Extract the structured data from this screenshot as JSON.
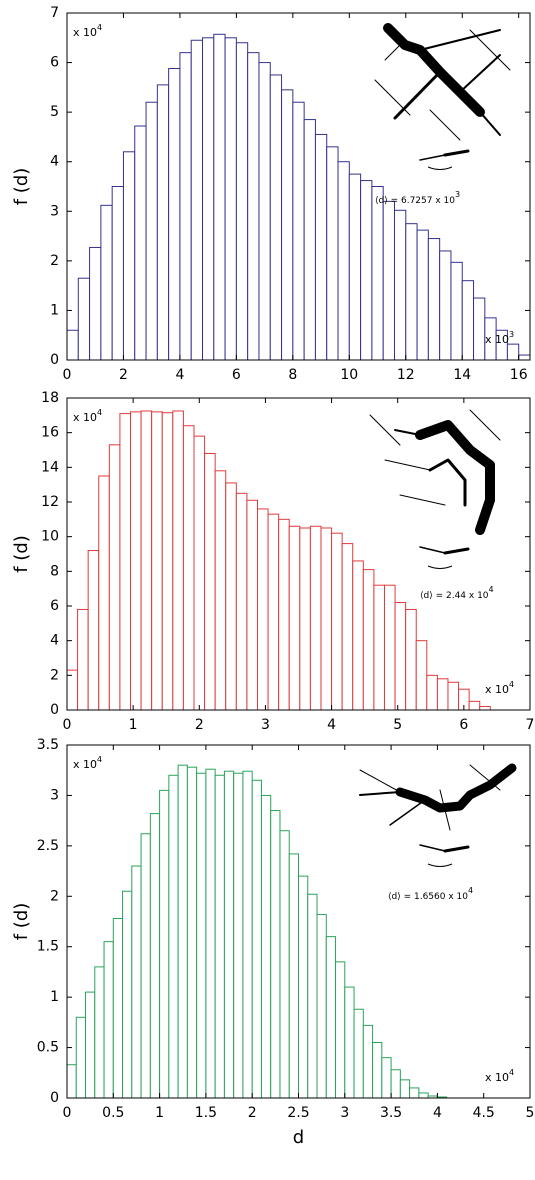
{
  "chart_data": [
    {
      "type": "histogram",
      "color": "#33338f",
      "ylabel": "f (d)",
      "y_multiplier": {
        "text": "x 10",
        "exponent": "4"
      },
      "x_multiplier": {
        "text": "x 10",
        "exponent": "3"
      },
      "mean_label": {
        "text": "⟨d⟩ = 6.7257 x 10",
        "exponent": "3"
      },
      "bins": [
        0,
        0.4,
        0.8,
        1.2,
        1.6,
        2,
        2.4,
        2.8,
        3.2,
        3.6,
        4,
        4.4,
        4.8,
        5.2,
        5.6,
        6,
        6.4,
        6.8,
        7.2,
        7.6,
        8,
        8.4,
        8.8,
        9.2,
        9.6,
        10,
        10.4,
        10.8,
        11.2,
        11.6,
        12,
        12.4,
        12.8,
        13.2,
        13.6,
        14,
        14.4,
        14.8,
        15.2,
        15.6,
        16,
        16.4
      ],
      "values": [
        0.6,
        1.65,
        2.27,
        3.12,
        3.5,
        4.2,
        4.72,
        5.2,
        5.55,
        5.88,
        6.2,
        6.45,
        6.5,
        6.57,
        6.5,
        6.4,
        6.2,
        6.0,
        5.75,
        5.45,
        5.2,
        4.85,
        4.55,
        4.3,
        4.0,
        3.75,
        3.62,
        3.5,
        3.2,
        3.02,
        2.75,
        2.62,
        2.45,
        2.2,
        1.97,
        1.6,
        1.25,
        0.85,
        0.6,
        0.32,
        0.1
      ],
      "xlim": [
        0,
        16.4
      ],
      "xticks": [
        0,
        2,
        4,
        6,
        8,
        10,
        12,
        14,
        16
      ],
      "ylim": [
        0,
        7
      ],
      "yticks": [
        0,
        1,
        2,
        3,
        4,
        5,
        6,
        7
      ]
    },
    {
      "type": "histogram",
      "color": "#e03a3a",
      "ylabel": "f (d)",
      "y_multiplier": {
        "text": "x 10",
        "exponent": "4"
      },
      "x_multiplier": {
        "text": "x 10",
        "exponent": "4"
      },
      "mean_label": {
        "text": "⟨d⟩ = 2.44 x 10",
        "exponent": "4"
      },
      "bins": [
        0,
        0.16,
        0.32,
        0.48,
        0.64,
        0.8,
        0.96,
        1.12,
        1.28,
        1.44,
        1.6,
        1.76,
        1.92,
        2.08,
        2.24,
        2.4,
        2.56,
        2.72,
        2.88,
        3.04,
        3.2,
        3.36,
        3.52,
        3.68,
        3.84,
        4,
        4.16,
        4.32,
        4.48,
        4.64,
        4.8,
        4.96,
        5.12,
        5.28,
        5.44,
        5.6,
        5.76,
        5.92,
        6.08,
        6.24,
        6.4
      ],
      "values": [
        2.3,
        5.8,
        9.2,
        13.5,
        15.3,
        17.1,
        17.2,
        17.25,
        17.2,
        17.15,
        17.25,
        16.4,
        15.8,
        14.8,
        13.8,
        13.1,
        12.5,
        12.1,
        11.6,
        11.3,
        11.0,
        10.6,
        10.5,
        10.6,
        10.5,
        10.2,
        9.6,
        8.6,
        8.1,
        7.2,
        7.2,
        6.2,
        5.8,
        4.0,
        2.0,
        1.8,
        1.6,
        1.2,
        0.5,
        0.2
      ],
      "xlim": [
        0,
        7
      ],
      "xticks": [
        0,
        1,
        2,
        3,
        4,
        5,
        6,
        7
      ],
      "ylim": [
        0,
        18
      ],
      "yticks": [
        0,
        2,
        4,
        6,
        8,
        10,
        12,
        14,
        16,
        18
      ]
    },
    {
      "type": "histogram",
      "color": "#2aa35a",
      "ylabel": "f (d)",
      "xlabel": "d",
      "y_multiplier": {
        "text": "x 10",
        "exponent": "4"
      },
      "x_multiplier": {
        "text": "x 10",
        "exponent": "4"
      },
      "mean_label": {
        "text": "⟨d⟩ = 1.6560 x 10",
        "exponent": "4"
      },
      "bins": [
        0,
        0.1,
        0.2,
        0.3,
        0.4,
        0.5,
        0.6,
        0.7,
        0.8,
        0.9,
        1,
        1.1,
        1.2,
        1.3,
        1.4,
        1.5,
        1.6,
        1.7,
        1.8,
        1.9,
        2,
        2.1,
        2.2,
        2.3,
        2.4,
        2.5,
        2.6,
        2.7,
        2.8,
        2.9,
        3,
        3.1,
        3.2,
        3.3,
        3.4,
        3.5,
        3.6,
        3.7,
        3.8,
        3.9,
        4,
        4.1
      ],
      "values": [
        0.33,
        0.8,
        1.05,
        1.3,
        1.55,
        1.78,
        2.05,
        2.3,
        2.62,
        2.82,
        3.05,
        3.2,
        3.3,
        3.28,
        3.22,
        3.26,
        3.2,
        3.24,
        3.22,
        3.24,
        3.15,
        3.0,
        2.85,
        2.65,
        2.42,
        2.2,
        2.02,
        1.82,
        1.6,
        1.35,
        1.1,
        0.88,
        0.72,
        0.55,
        0.4,
        0.28,
        0.18,
        0.1,
        0.05,
        0.02,
        0.01
      ],
      "xlim": [
        0,
        5
      ],
      "xticks": [
        0,
        0.5,
        1,
        1.5,
        2,
        2.5,
        3,
        3.5,
        4,
        4.5,
        5
      ],
      "ylim": [
        0,
        3.5
      ],
      "yticks": [
        0,
        0.5,
        1,
        1.5,
        2,
        2.5,
        3,
        3.5
      ]
    }
  ]
}
